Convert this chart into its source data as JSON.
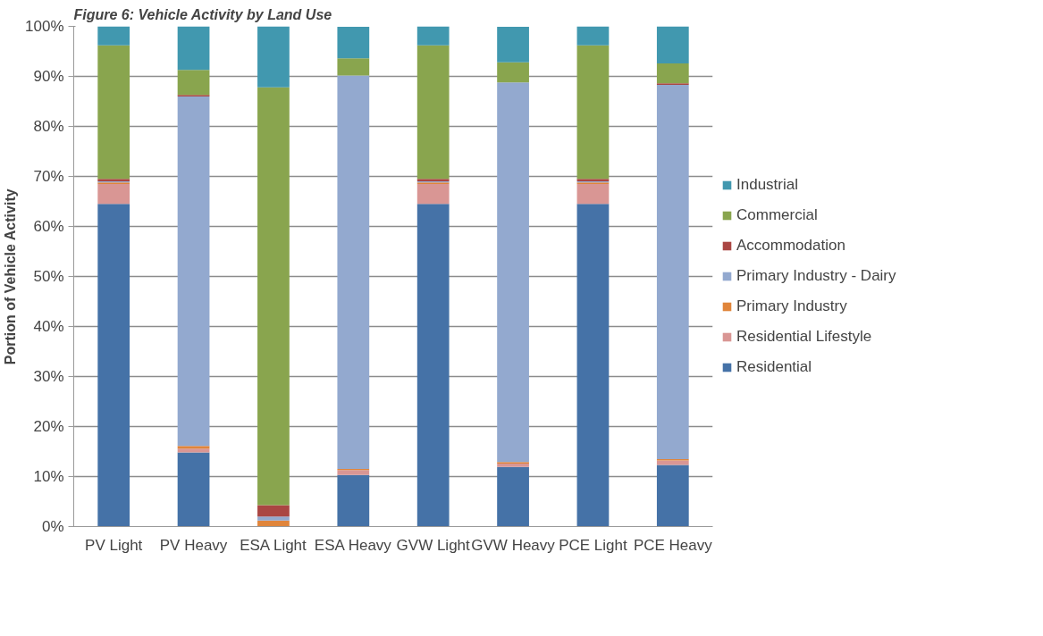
{
  "chart_data": {
    "type": "bar",
    "stacked": true,
    "title": "Figure 6: Vehicle Activity by Land Use",
    "ylabel": "Portion of Vehicle Activity",
    "categories": [
      "PV Light",
      "PV Heavy",
      "ESA Light",
      "ESA Heavy",
      "GVW Light",
      "GVW Heavy",
      "PCE Light",
      "PCE Heavy"
    ],
    "series": [
      {
        "name": "Residential",
        "color": "#4572a7",
        "values": [
          64.5,
          14.8,
          0,
          10.3,
          64.5,
          11.9,
          64.5,
          12.3
        ]
      },
      {
        "name": "Residential Lifestyle",
        "color": "#d99694",
        "values": [
          4.0,
          0.8,
          0,
          1.0,
          4.0,
          0.7,
          4.0,
          0.9
        ]
      },
      {
        "name": "Primary Industry",
        "color": "#e0853b",
        "values": [
          0.3,
          0.5,
          1.2,
          0.2,
          0.3,
          0.3,
          0.3,
          0.3
        ]
      },
      {
        "name": "Primary Industry - Dairy",
        "color": "#93a9cf",
        "values": [
          0.2,
          69.9,
          0.8,
          78.7,
          0.2,
          75.9,
          0.2,
          74.8
        ]
      },
      {
        "name": "Accommodation",
        "color": "#aa4643",
        "values": [
          0.5,
          0.3,
          2.3,
          null,
          0.5,
          null,
          0.5,
          0.3
        ]
      },
      {
        "name": "Commercial",
        "color": "#89a54e",
        "values": [
          26.7,
          5.0,
          83.5,
          3.4,
          26.7,
          4.0,
          26.7,
          4.0
        ]
      },
      {
        "name": "Industrial",
        "color": "#4198af",
        "values": [
          3.8,
          8.7,
          12.2,
          6.3,
          3.8,
          7.1,
          3.8,
          7.4
        ]
      }
    ],
    "ylim": [
      0,
      100
    ],
    "yticks": [
      {
        "value": 0,
        "label": "0%"
      },
      {
        "value": 10,
        "label": "10%"
      },
      {
        "value": 20,
        "label": "20%"
      },
      {
        "value": 30,
        "label": "30%"
      },
      {
        "value": 40,
        "label": "40%"
      },
      {
        "value": 50,
        "label": "50%"
      },
      {
        "value": 60,
        "label": "60%"
      },
      {
        "value": 70,
        "label": "70%"
      },
      {
        "value": 80,
        "label": "80%"
      },
      {
        "value": 90,
        "label": "90%"
      },
      {
        "value": 100,
        "label": "100%"
      }
    ],
    "grid": "y",
    "legend": "right"
  }
}
